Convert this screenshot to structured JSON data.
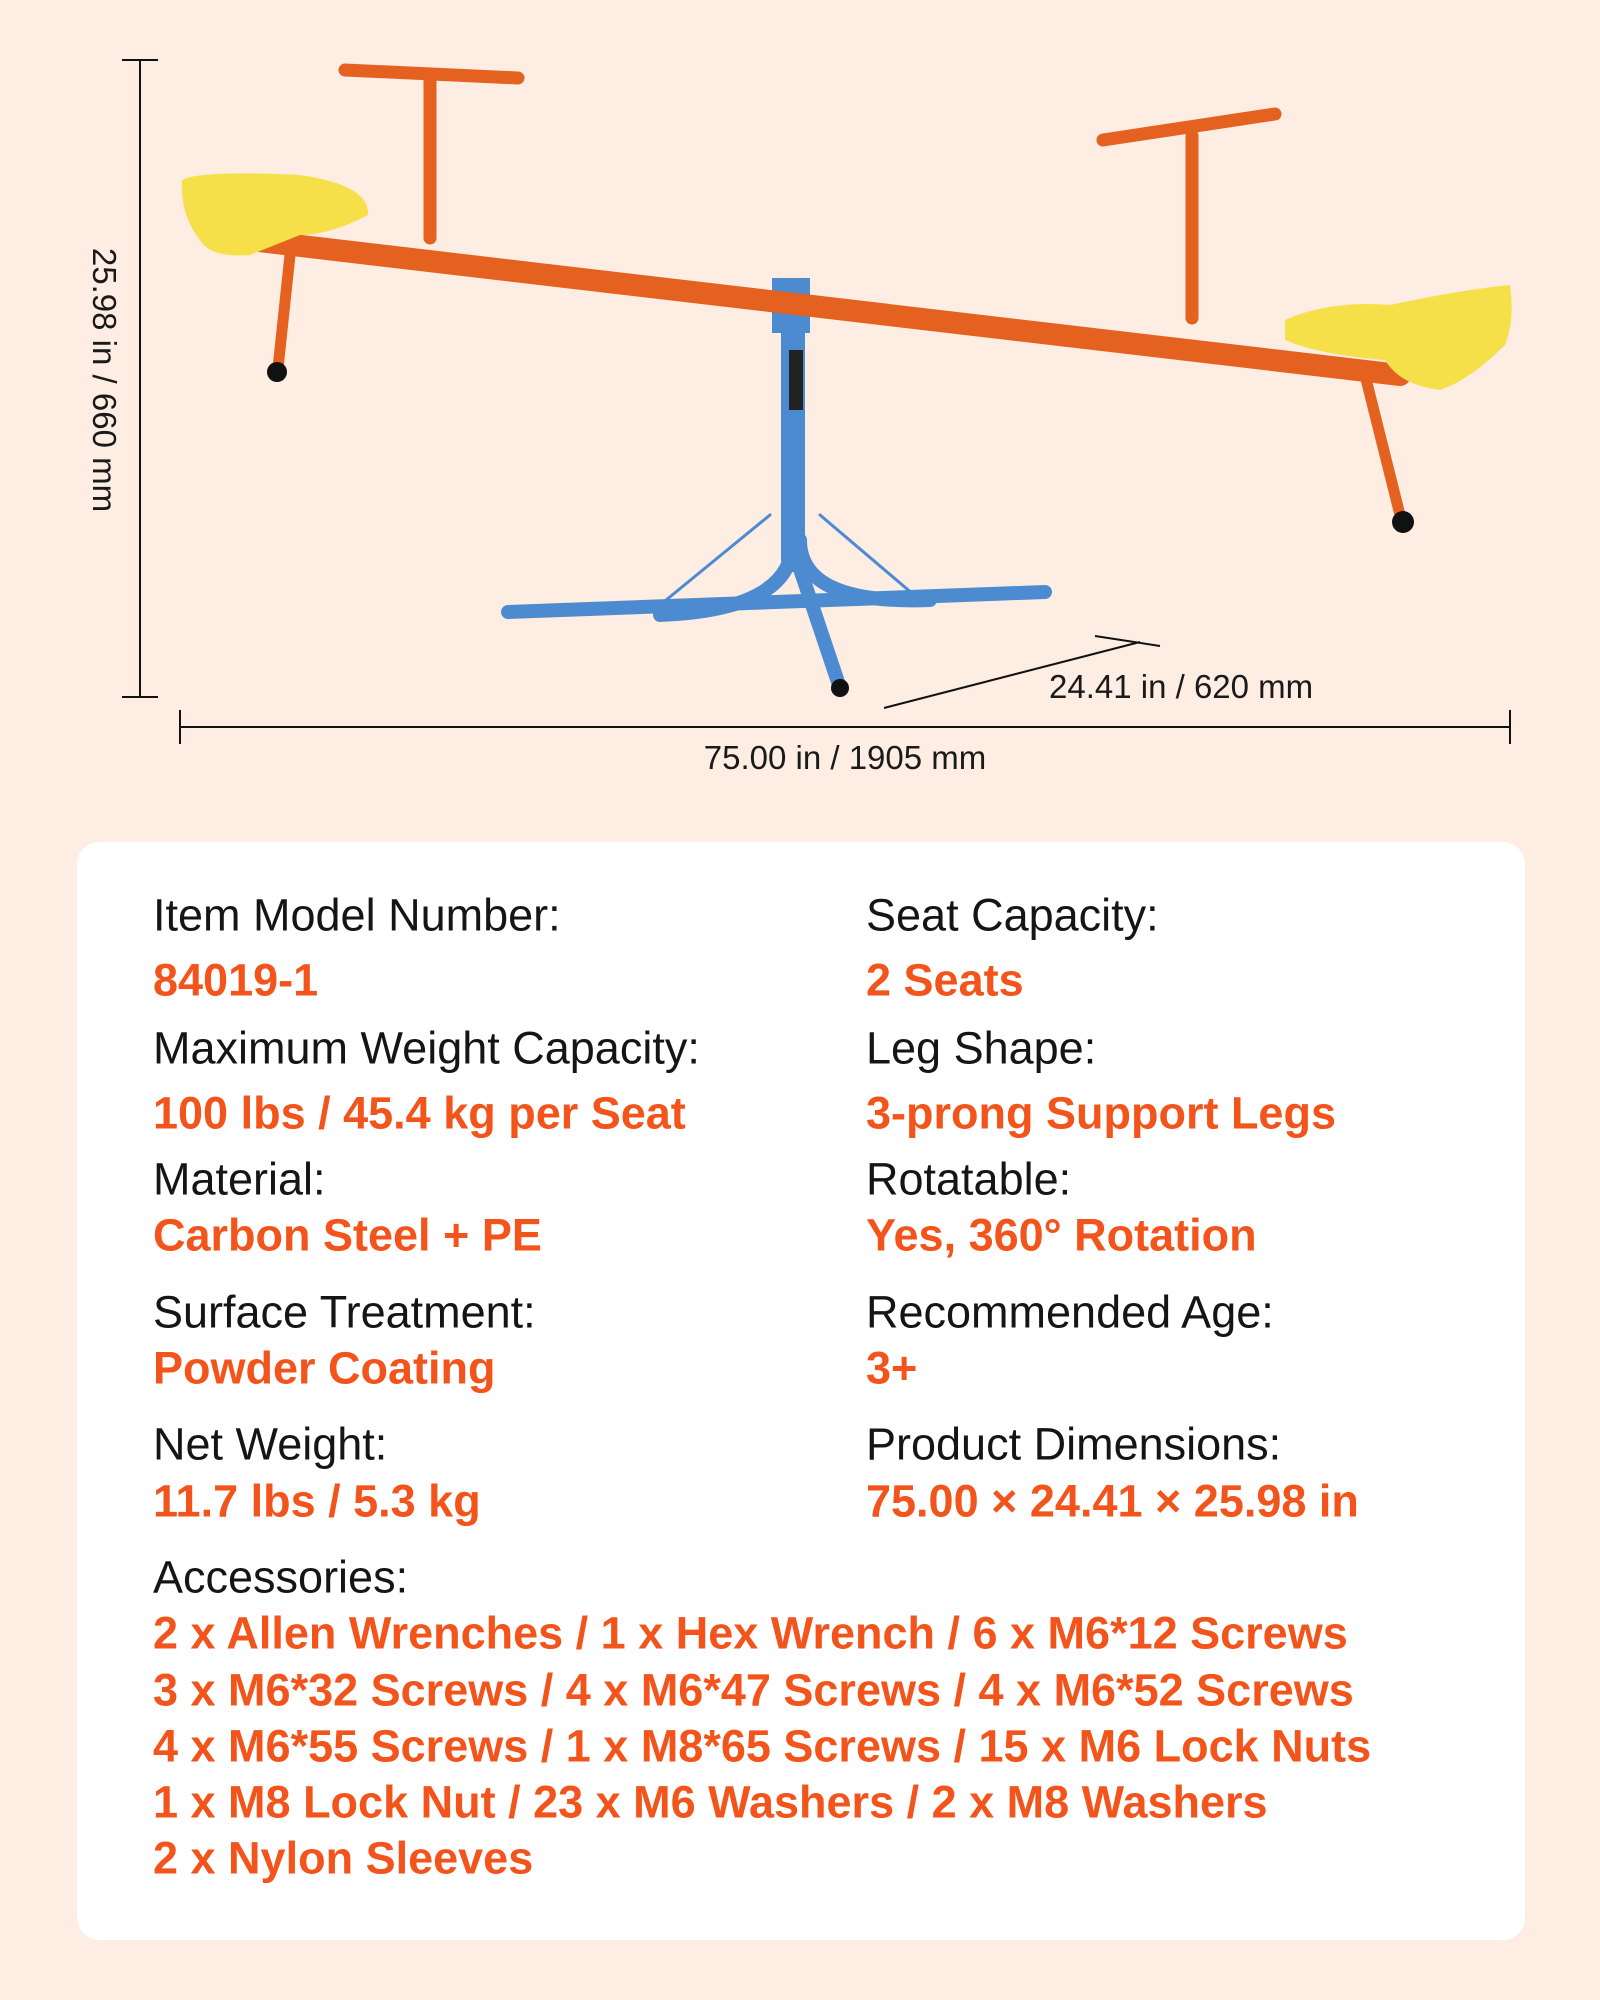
{
  "dimensions": {
    "height": "25.98 in / 660 mm",
    "length": "75.00 in / 1905 mm",
    "depth": "24.41 in / 620 mm"
  },
  "colors": {
    "background": "#fdede3",
    "accent": "#f2541b",
    "beam": "#e5611f",
    "stand": "#4d8bd1",
    "seat": "#f6e04a"
  },
  "specs": {
    "model": {
      "label": "Item Model Number:",
      "value": "84019-1"
    },
    "seat_capacity": {
      "label": "Seat Capacity:",
      "value": "2 Seats"
    },
    "max_weight": {
      "label": "Maximum Weight Capacity:",
      "value": "100 lbs / 45.4 kg per Seat"
    },
    "leg_shape": {
      "label": "Leg Shape:",
      "value": "3-prong Support Legs"
    },
    "material": {
      "label": "Material:",
      "value": "Carbon Steel + PE"
    },
    "rotatable": {
      "label": "Rotatable:",
      "value": "Yes, 360° Rotation"
    },
    "surface": {
      "label": "Surface Treatment:",
      "value": "Powder Coating"
    },
    "age": {
      "label": "Recommended Age:",
      "value": "3+"
    },
    "net_weight": {
      "label": "Net Weight:",
      "value": "11.7 lbs / 5.3 kg"
    },
    "dimensions": {
      "label": "Product Dimensions:",
      "value": "75.00 × 24.41 × 25.98 in"
    },
    "accessories": {
      "label": "Accessories:",
      "lines": [
        "2 x Allen Wrenches / 1 x Hex Wrench / 6 x M6*12 Screws",
        "3 x M6*32 Screws / 4 x M6*47 Screws / 4 x M6*52 Screws",
        "4 x M6*55 Screws / 1 x M8*65 Screws / 15 x M6 Lock Nuts",
        "1 x M8 Lock Nut / 23 x M6 Washers / 2 x M8 Washers",
        "2 x Nylon Sleeves"
      ]
    }
  }
}
